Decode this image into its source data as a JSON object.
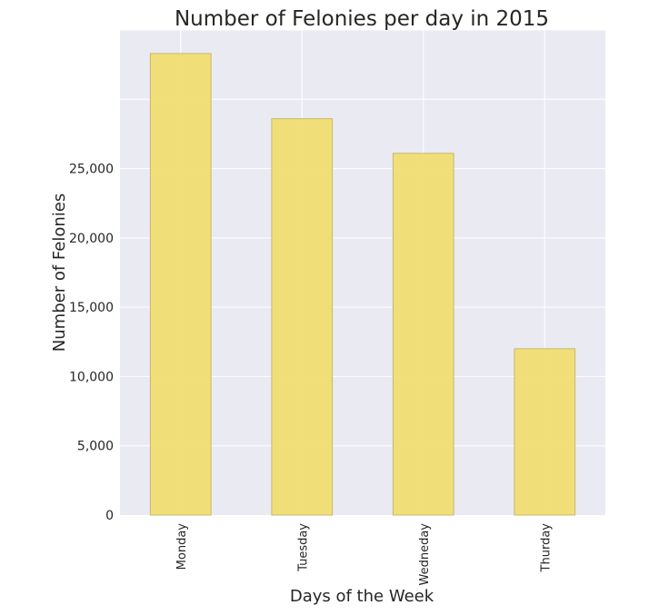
{
  "chart_data": {
    "type": "bar",
    "title": "Number of Felonies per day in 2015",
    "xlabel": "Days of the Week",
    "ylabel": "Number of Felonies",
    "categories": [
      "Monday",
      "Tuesday",
      "Wedneday",
      "Thurday"
    ],
    "values": [
      33300,
      28600,
      26100,
      12000
    ],
    "ylim": [
      0,
      35000
    ],
    "yticks": [
      0,
      5000,
      10000,
      15000,
      20000,
      25000
    ],
    "ytick_labels": [
      "0",
      "5,000",
      "10,000",
      "15,000",
      "20,000",
      "25,000"
    ],
    "grid": true,
    "colors": {
      "bar": "#f0dc6e",
      "bar_edge": "#c8b870",
      "plot_background": "#eaeaf2",
      "grid": "#ffffff"
    }
  }
}
